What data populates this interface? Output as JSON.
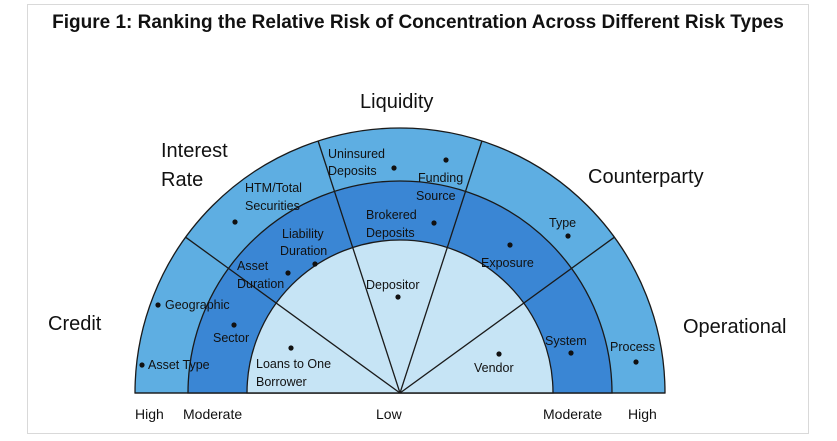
{
  "figure": {
    "title": "Figure 1: Ranking the Relative Risk of Concentration Across Different Risk Types"
  },
  "categories": {
    "credit": "Credit",
    "interest_rate_line1": "Interest",
    "interest_rate_line2": "Rate",
    "liquidity": "Liquidity",
    "counterparty": "Counterparty",
    "operational": "Operational"
  },
  "items": {
    "geographic": "Geographic",
    "asset_type": "Asset Type",
    "sector": "Sector",
    "loans_to_one_line1": "Loans to One",
    "loans_to_one_line2": "Borrower",
    "htm_line1": "HTM/Total",
    "htm_line2": "Securities",
    "liability_line1": "Liability",
    "liability_line2": "Duration",
    "asset_dur_line1": "Asset",
    "asset_dur_line2": "Duration",
    "uninsured_line1": "Uninsured",
    "uninsured_line2": "Deposits",
    "funding_line1": "Funding",
    "funding_line2": "Source",
    "brokered_line1": "Brokered",
    "brokered_line2": "Deposits",
    "depositor": "Depositor",
    "type": "Type",
    "exposure": "Exposure",
    "system": "System",
    "process": "Process",
    "vendor": "Vendor"
  },
  "scale": {
    "high_left": "High",
    "moderate_left": "Moderate",
    "low": "Low",
    "moderate_right": "Moderate",
    "high_right": "High"
  },
  "colors": {
    "outer_band": "#5eaee2",
    "middle_band": "#3a86d4",
    "inner_band": "#c6e4f5",
    "outline": "#1a1a1a"
  }
}
